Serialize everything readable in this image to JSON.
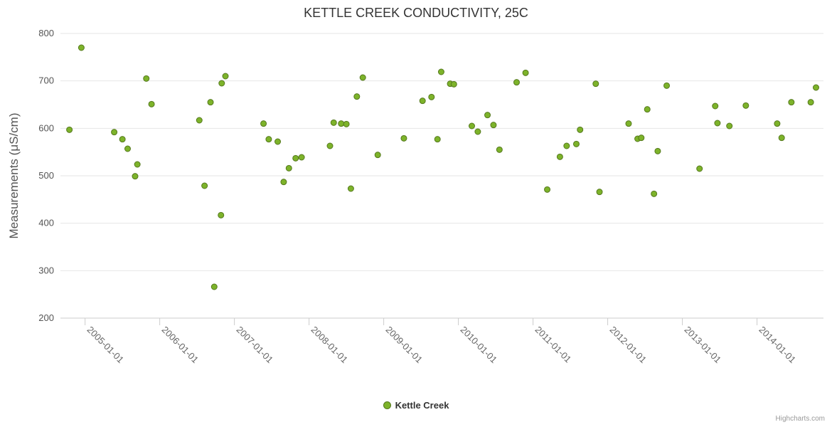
{
  "title": "KETTLE CREEK CONDUCTIVITY, 25C",
  "y_axis": {
    "label": "Measurements (μS/cm)",
    "ticks": [
      200,
      300,
      400,
      500,
      600,
      700,
      800
    ]
  },
  "x_axis": {
    "ticks": [
      {
        "label": "2005-01-01",
        "year": 2005
      },
      {
        "label": "2006-01-01",
        "year": 2006
      },
      {
        "label": "2007-01-01",
        "year": 2007
      },
      {
        "label": "2008-01-01",
        "year": 2008
      },
      {
        "label": "2009-01-01",
        "year": 2009
      },
      {
        "label": "2010-01-01",
        "year": 2010
      },
      {
        "label": "2011-01-01",
        "year": 2011
      },
      {
        "label": "2012-01-01",
        "year": 2012
      },
      {
        "label": "2013-01-01",
        "year": 2013
      },
      {
        "label": "2014-01-01",
        "year": 2014
      }
    ]
  },
  "legend": {
    "label": "Kettle Creek"
  },
  "credits": "Highcharts.com",
  "colors": {
    "point_fill": "#7db32a",
    "point_stroke": "#55791e",
    "grid": "#e6e6e6",
    "axis_line": "#cccccc",
    "title_text": "#333333",
    "axis_text": "#555555",
    "label_text": "#666666",
    "credits_text": "#999999"
  },
  "chart_data": {
    "type": "scatter",
    "title": "KETTLE CREEK CONDUCTIVITY, 25C",
    "xlabel": "",
    "ylabel": "Measurements (μS/cm)",
    "x_unit": "decimal_year",
    "xlim": [
      2004.67,
      2014.89
    ],
    "ylim": [
      200,
      800
    ],
    "y_tick_interval": 100,
    "grid": "horizontal",
    "legend_position": "bottom",
    "series": [
      {
        "name": "Kettle Creek",
        "points": [
          [
            2004.79,
            597
          ],
          [
            2004.95,
            770
          ],
          [
            2005.39,
            592
          ],
          [
            2005.5,
            577
          ],
          [
            2005.57,
            557
          ],
          [
            2005.67,
            499
          ],
          [
            2005.7,
            524
          ],
          [
            2005.82,
            705
          ],
          [
            2005.89,
            651
          ],
          [
            2006.53,
            617
          ],
          [
            2006.6,
            479
          ],
          [
            2006.68,
            655
          ],
          [
            2006.73,
            266
          ],
          [
            2006.82,
            417
          ],
          [
            2006.83,
            695
          ],
          [
            2006.88,
            710
          ],
          [
            2007.39,
            610
          ],
          [
            2007.46,
            577
          ],
          [
            2007.58,
            572
          ],
          [
            2007.66,
            487
          ],
          [
            2007.73,
            516
          ],
          [
            2007.82,
            537
          ],
          [
            2007.9,
            539
          ],
          [
            2008.28,
            563
          ],
          [
            2008.33,
            612
          ],
          [
            2008.43,
            610
          ],
          [
            2008.5,
            609
          ],
          [
            2008.56,
            473
          ],
          [
            2008.64,
            667
          ],
          [
            2008.72,
            707
          ],
          [
            2008.92,
            544
          ],
          [
            2009.27,
            579
          ],
          [
            2009.52,
            658
          ],
          [
            2009.64,
            666
          ],
          [
            2009.72,
            577
          ],
          [
            2009.77,
            719
          ],
          [
            2009.89,
            694
          ],
          [
            2009.94,
            693
          ],
          [
            2010.18,
            605
          ],
          [
            2010.26,
            593
          ],
          [
            2010.39,
            628
          ],
          [
            2010.47,
            607
          ],
          [
            2010.55,
            555
          ],
          [
            2010.78,
            697
          ],
          [
            2010.9,
            717
          ],
          [
            2011.19,
            471
          ],
          [
            2011.36,
            540
          ],
          [
            2011.45,
            563
          ],
          [
            2011.58,
            567
          ],
          [
            2011.63,
            597
          ],
          [
            2011.84,
            694
          ],
          [
            2011.89,
            466
          ],
          [
            2012.28,
            610
          ],
          [
            2012.4,
            578
          ],
          [
            2012.45,
            580
          ],
          [
            2012.53,
            640
          ],
          [
            2012.62,
            462
          ],
          [
            2012.67,
            552
          ],
          [
            2012.79,
            690
          ],
          [
            2013.23,
            515
          ],
          [
            2013.44,
            647
          ],
          [
            2013.47,
            611
          ],
          [
            2013.63,
            605
          ],
          [
            2013.85,
            648
          ],
          [
            2014.27,
            610
          ],
          [
            2014.33,
            580
          ],
          [
            2014.46,
            655
          ],
          [
            2014.72,
            655
          ],
          [
            2014.79,
            686
          ]
        ]
      }
    ]
  }
}
